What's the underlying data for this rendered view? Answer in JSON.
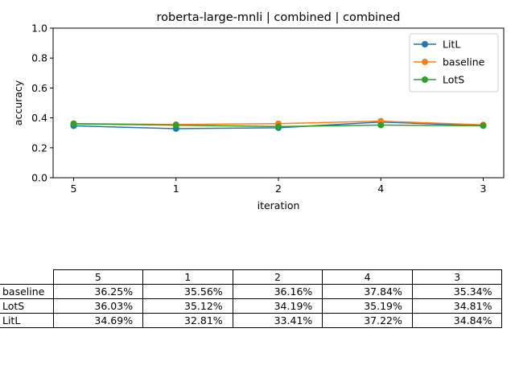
{
  "chart_data": {
    "type": "line",
    "title": "roberta-large-mnli | combined | combined",
    "xlabel": "iteration",
    "ylabel": "accuracy",
    "categories": [
      "5",
      "1",
      "2",
      "4",
      "3"
    ],
    "ylim": [
      0,
      1.0
    ],
    "yticks": [
      "0.0",
      "0.2",
      "0.4",
      "0.6",
      "0.8",
      "1.0"
    ],
    "grid": false,
    "legend_position": "top-right",
    "series": [
      {
        "name": "LitL",
        "color": "#1f77b4",
        "values": [
          0.3469,
          0.3281,
          0.3341,
          0.3722,
          0.3484
        ]
      },
      {
        "name": "baseline",
        "color": "#ff7f0e",
        "values": [
          0.3625,
          0.3556,
          0.3616,
          0.3784,
          0.3534
        ]
      },
      {
        "name": "LotS",
        "color": "#2ca02c",
        "values": [
          0.3603,
          0.3512,
          0.3419,
          0.3519,
          0.3481
        ]
      }
    ]
  },
  "table": {
    "columns": [
      "5",
      "1",
      "2",
      "4",
      "3"
    ],
    "rows": [
      {
        "label": "baseline",
        "cells": [
          "36.25%",
          "35.56%",
          "36.16%",
          "37.84%",
          "35.34%"
        ]
      },
      {
        "label": "LotS",
        "cells": [
          "36.03%",
          "35.12%",
          "34.19%",
          "35.19%",
          "34.81%"
        ]
      },
      {
        "label": "LitL",
        "cells": [
          "34.69%",
          "32.81%",
          "33.41%",
          "37.22%",
          "34.84%"
        ]
      }
    ]
  }
}
